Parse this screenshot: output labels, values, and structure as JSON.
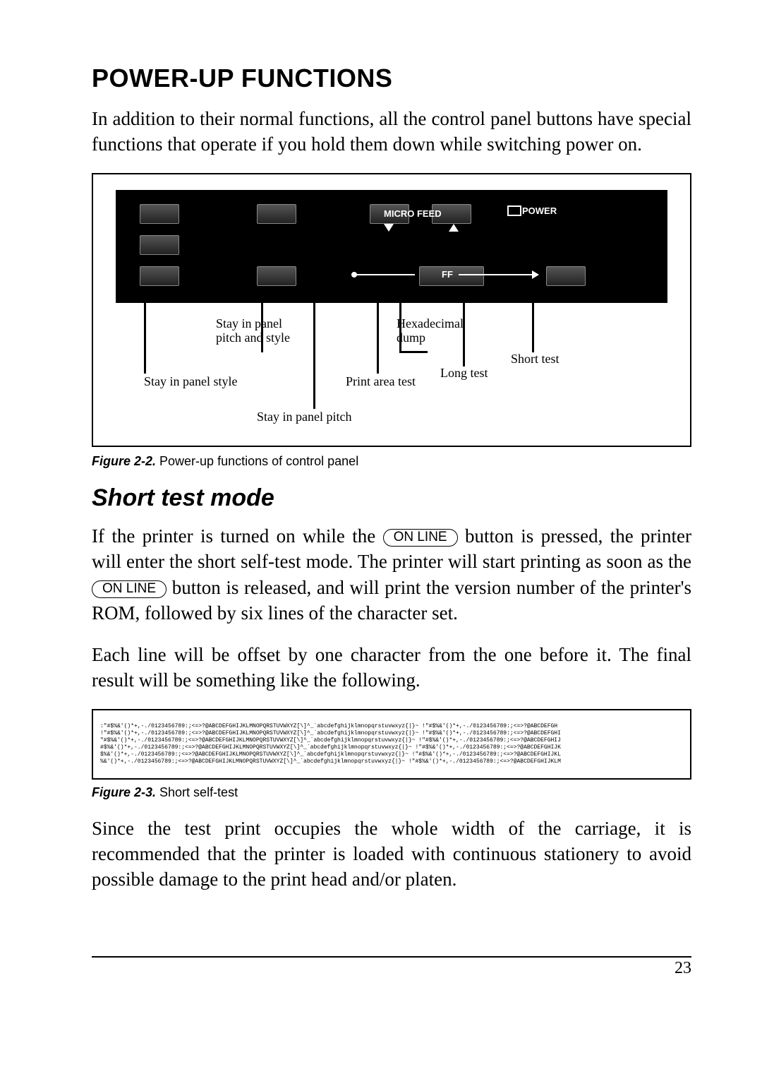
{
  "title": "POWER-UP FUNCTIONS",
  "intro": "In addition to their normal functions, all the control panel buttons have special functions that operate if you hold them down while switching power on.",
  "panel": {
    "micro_feed": "MICRO FEED",
    "power": "POWER",
    "ff": "FF"
  },
  "tags": {
    "pitch_style": "Stay in panel\npitch and style",
    "stay_style": "Stay in panel style",
    "stay_pitch": "Stay in panel pitch",
    "hex_dump": "Hexadecimal\ndump",
    "print_area": "Print area test",
    "long_test": "Long test",
    "short_test": "Short test"
  },
  "fig22": {
    "label": "Figure 2-2.",
    "text": " Power-up functions of control panel"
  },
  "h2": "Short test mode",
  "p2a": "If the printer is turned on while the ",
  "p2b": " button is pressed, the printer will enter the short self-test mode. The printer will start printing as soon as the ",
  "p2c": " button is released, and will print the version number of the printer's ROM, followed by six lines of the character set.",
  "online": "ON LINE",
  "p3": "Each line will be offset by one character from the one before it. The final result will be something like the following.",
  "selftest_lines": [
    ":\"#$%&'()*+,-./0123456789:;<=>?@ABCDEFGHIJKLMNOPQRSTUVWXYZ[\\]^_`abcdefghijklmnopqrstuvwxyz{|}~ !\"#$%&'()*+,-./0123456789:;<=>?@ABCDEFGH",
    "!\"#$%&'()*+,-./0123456789:;<=>?@ABCDEFGHIJKLMNOPQRSTUVWXYZ[\\]^_`abcdefghijklmnopqrstuvwxyz{|}~ !\"#$%&'()*+,-./0123456789:;<=>?@ABCDEFGHI",
    "\"#$%&'()*+,-./0123456789:;<=>?@ABCDEFGHIJKLMNOPQRSTUVWXYZ[\\]^_`abcdefghijklmnopqrstuvwxyz{|}~ !\"#$%&'()*+,-./0123456789:;<=>?@ABCDEFGHIJ",
    "#$%&'()*+,-./0123456789:;<=>?@ABCDEFGHIJKLMNOPQRSTUVWXYZ[\\]^_`abcdefghijklmnopqrstuvwxyz{|}~ !\"#$%&'()*+,-./0123456789:;<=>?@ABCDEFGHIJK",
    "$%&'()*+,-./0123456789:;<=>?@ABCDEFGHIJKLMNOPQRSTUVWXYZ[\\]^_`abcdefghijklmnopqrstuvwxyz{|}~ !\"#$%&'()*+,-./0123456789:;<=>?@ABCDEFGHIJKL",
    "%&'()*+,-./0123456789:;<=>?@ABCDEFGHIJKLMNOPQRSTUVWXYZ[\\]^_`abcdefghijklmnopqrstuvwxyz{|}~ !\"#$%&'()*+,-./0123456789:;<=>?@ABCDEFGHIJKLM"
  ],
  "fig23": {
    "label": "Figure 2-3.",
    "text": " Short self-test"
  },
  "p4": "Since the test print occupies the whole width of the carriage, it is recommended that the printer is loaded with continuous stationery to avoid possible damage to the print head and/or platen.",
  "page_number": "23"
}
